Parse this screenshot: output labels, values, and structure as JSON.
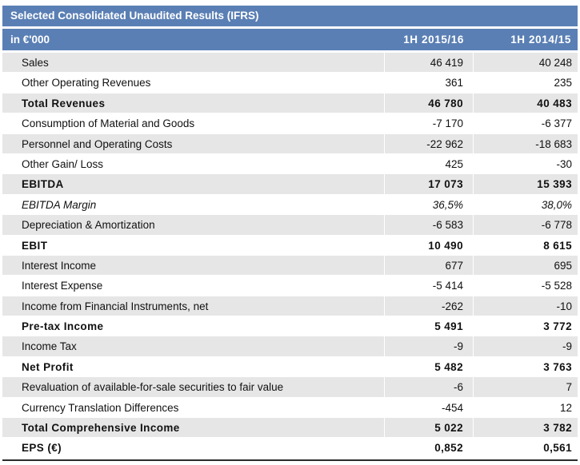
{
  "table": {
    "title": "Selected Consolidated Unaudited Results (IFRS)",
    "header": {
      "label": "in €'000",
      "col1": "1H 2015/16",
      "col2": "1H 2014/15"
    },
    "rows": [
      {
        "label": "Sales",
        "v1": "46 419",
        "v2": "40 248",
        "bold": false,
        "italic": false,
        "shaded": true
      },
      {
        "label": "Other Operating Revenues",
        "v1": "361",
        "v2": "235",
        "bold": false,
        "italic": false,
        "shaded": false
      },
      {
        "label": "Total Revenues",
        "v1": "46 780",
        "v2": "40 483",
        "bold": true,
        "italic": false,
        "shaded": true
      },
      {
        "label": "Consumption of Material and Goods",
        "v1": "-7 170",
        "v2": "-6 377",
        "bold": false,
        "italic": false,
        "shaded": false
      },
      {
        "label": "Personnel and Operating Costs",
        "v1": "-22 962",
        "v2": "-18 683",
        "bold": false,
        "italic": false,
        "shaded": true
      },
      {
        "label": "Other Gain/ Loss",
        "v1": "425",
        "v2": "-30",
        "bold": false,
        "italic": false,
        "shaded": false
      },
      {
        "label": "EBITDA",
        "v1": "17 073",
        "v2": "15 393",
        "bold": true,
        "italic": false,
        "shaded": true
      },
      {
        "label": "EBITDA Margin",
        "v1": "36,5%",
        "v2": "38,0%",
        "bold": false,
        "italic": true,
        "shaded": false
      },
      {
        "label": "Depreciation & Amortization",
        "v1": "-6 583",
        "v2": "-6 778",
        "bold": false,
        "italic": false,
        "shaded": true
      },
      {
        "label": "EBIT",
        "v1": "10 490",
        "v2": "8 615",
        "bold": true,
        "italic": false,
        "shaded": false
      },
      {
        "label": "Interest Income",
        "v1": "677",
        "v2": "695",
        "bold": false,
        "italic": false,
        "shaded": true
      },
      {
        "label": "Interest Expense",
        "v1": "-5 414",
        "v2": "-5 528",
        "bold": false,
        "italic": false,
        "shaded": false
      },
      {
        "label": "Income from Financial Instruments, net",
        "v1": "-262",
        "v2": "-10",
        "bold": false,
        "italic": false,
        "shaded": true
      },
      {
        "label": "Pre-tax Income",
        "v1": "5 491",
        "v2": "3 772",
        "bold": true,
        "italic": false,
        "shaded": false
      },
      {
        "label": "Income Tax",
        "v1": "-9",
        "v2": "-9",
        "bold": false,
        "italic": false,
        "shaded": true
      },
      {
        "label": "Net Profit",
        "v1": "5 482",
        "v2": "3 763",
        "bold": true,
        "italic": false,
        "shaded": false
      },
      {
        "label": "Revaluation of available-for-sale securities to fair value",
        "v1": "-6",
        "v2": "7",
        "bold": false,
        "italic": false,
        "shaded": true
      },
      {
        "label": "Currency Translation Differences",
        "v1": "-454",
        "v2": "12",
        "bold": false,
        "italic": false,
        "shaded": false
      },
      {
        "label": "Total Comprehensive Income",
        "v1": "5 022",
        "v2": "3 782",
        "bold": true,
        "italic": false,
        "shaded": true
      },
      {
        "label": "EPS (€)",
        "v1": "0,852",
        "v2": "0,561",
        "bold": true,
        "italic": false,
        "shaded": false
      }
    ]
  },
  "colors": {
    "header_bg": "#5a7fb4",
    "row_shaded": "#e6e6e6",
    "bottom_rule": "#2b2b2b"
  }
}
